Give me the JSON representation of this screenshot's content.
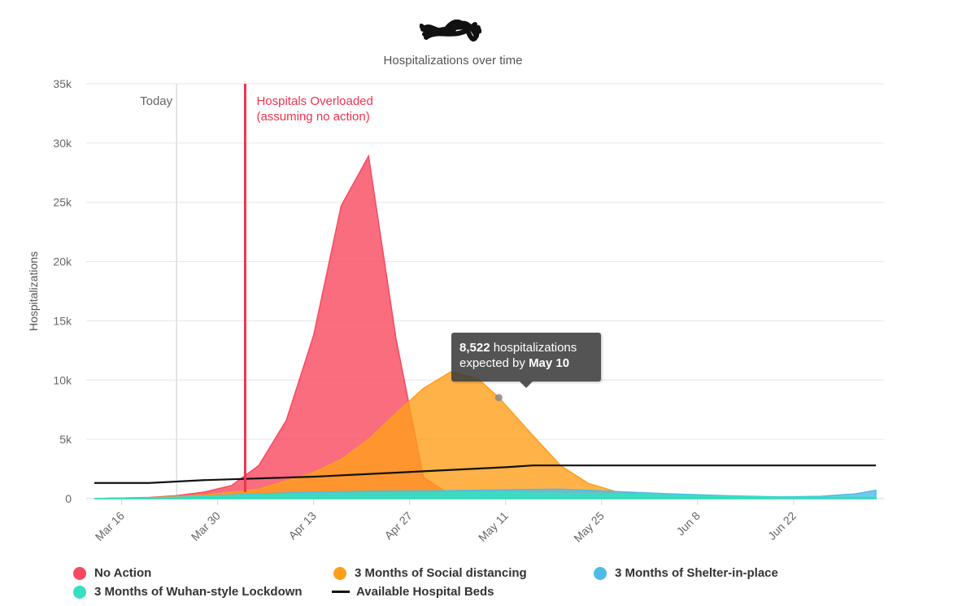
{
  "header": {
    "chart_title": "Hospitalizations over time"
  },
  "chart_data": {
    "type": "area",
    "title": "Hospitalizations over time",
    "ylabel": "Hospitalizations",
    "xlabel": "",
    "ylim": [
      0,
      35000
    ],
    "y_ticks": [
      {
        "value": 0,
        "label": "0"
      },
      {
        "value": 5000,
        "label": "5k"
      },
      {
        "value": 10000,
        "label": "10k"
      },
      {
        "value": 15000,
        "label": "15k"
      },
      {
        "value": 20000,
        "label": "20k"
      },
      {
        "value": 25000,
        "label": "25k"
      },
      {
        "value": 30000,
        "label": "30k"
      },
      {
        "value": 35000,
        "label": "35k"
      }
    ],
    "x_ticks": [
      {
        "date": "Mar 16",
        "label": "Mar 16"
      },
      {
        "date": "Mar 30",
        "label": "Mar 30"
      },
      {
        "date": "Apr 13",
        "label": "Apr 13"
      },
      {
        "date": "Apr 27",
        "label": "Apr 27"
      },
      {
        "date": "May 11",
        "label": "May 11"
      },
      {
        "date": "May 25",
        "label": "May 25"
      },
      {
        "date": "Jun 8",
        "label": "Jun 8"
      },
      {
        "date": "Jun 22",
        "label": "Jun 22"
      }
    ],
    "x_range": [
      "Mar 12",
      "Jul 4"
    ],
    "grid": true,
    "legend_position": "bottom",
    "annotations": {
      "today": {
        "date": "Mar 24",
        "label": "Today"
      },
      "overload": {
        "date": "Apr 3",
        "label_line1": "Hospitals Overloaded",
        "label_line2": "(assuming no action)",
        "color": "#f0334e"
      }
    },
    "tooltip": {
      "value": "8,522",
      "text_mid": " hospitalizations",
      "text_prefix": "expected by ",
      "date": "May 10",
      "point_date": "May 10",
      "point_value": 8522
    },
    "series": [
      {
        "name": "No Action",
        "color": "#f9485f",
        "points": [
          [
            "Mar 12",
            0
          ],
          [
            "Mar 16",
            50
          ],
          [
            "Mar 20",
            100
          ],
          [
            "Mar 24",
            250
          ],
          [
            "Mar 28",
            550
          ],
          [
            "Apr 1",
            1100
          ],
          [
            "Apr 5",
            2800
          ],
          [
            "Apr 9",
            6600
          ],
          [
            "Apr 13",
            13800
          ],
          [
            "Apr 17",
            24700
          ],
          [
            "Apr 21",
            28900
          ],
          [
            "Apr 25",
            13500
          ],
          [
            "Apr 29",
            1800
          ],
          [
            "May 3",
            300
          ],
          [
            "May 7",
            100
          ],
          [
            "May 11",
            30
          ],
          [
            "May 15",
            0
          ],
          [
            "Jul 4",
            0
          ]
        ]
      },
      {
        "name": "3 Months of Social distancing",
        "color": "#ff9f1a",
        "points": [
          [
            "Mar 12",
            0
          ],
          [
            "Mar 20",
            80
          ],
          [
            "Mar 28",
            300
          ],
          [
            "Apr 5",
            800
          ],
          [
            "Apr 13",
            2200
          ],
          [
            "Apr 17",
            3300
          ],
          [
            "Apr 21",
            5000
          ],
          [
            "Apr 25",
            7200
          ],
          [
            "Apr 29",
            9300
          ],
          [
            "May 3",
            10700
          ],
          [
            "May 7",
            10100
          ],
          [
            "May 10",
            8522
          ],
          [
            "May 15",
            5300
          ],
          [
            "May 19",
            2800
          ],
          [
            "May 23",
            1300
          ],
          [
            "May 27",
            600
          ],
          [
            "Jun 1",
            300
          ],
          [
            "Jun 10",
            120
          ],
          [
            "Jun 20",
            50
          ],
          [
            "Jul 4",
            20
          ]
        ]
      },
      {
        "name": "3 Months of Shelter-in-place",
        "color": "#4dbbe8",
        "points": [
          [
            "Mar 12",
            0
          ],
          [
            "Mar 24",
            120
          ],
          [
            "Apr 5",
            400
          ],
          [
            "Apr 13",
            550
          ],
          [
            "Apr 21",
            620
          ],
          [
            "May 1",
            650
          ],
          [
            "May 11",
            750
          ],
          [
            "May 19",
            800
          ],
          [
            "May 27",
            600
          ],
          [
            "Jun 4",
            400
          ],
          [
            "Jun 12",
            250
          ],
          [
            "Jun 20",
            150
          ],
          [
            "Jun 26",
            200
          ],
          [
            "Jul 1",
            400
          ],
          [
            "Jul 4",
            700
          ]
        ]
      },
      {
        "name": "3 Months of Wuhan-style Lockdown",
        "color": "#35e0bf",
        "points": [
          [
            "Mar 12",
            0
          ],
          [
            "Mar 24",
            100
          ],
          [
            "Apr 5",
            330
          ],
          [
            "Apr 13",
            430
          ],
          [
            "Apr 21",
            480
          ],
          [
            "May 1",
            500
          ],
          [
            "May 11",
            510
          ],
          [
            "May 19",
            450
          ],
          [
            "May 27",
            380
          ],
          [
            "Jun 4",
            300
          ],
          [
            "Jun 12",
            200
          ],
          [
            "Jun 20",
            120
          ],
          [
            "Jul 4",
            100
          ]
        ]
      },
      {
        "name": "Available Hospital Beds",
        "color": "#111111",
        "type": "line",
        "points": [
          [
            "Mar 12",
            1320
          ],
          [
            "Mar 20",
            1320
          ],
          [
            "Mar 28",
            1560
          ],
          [
            "Apr 13",
            1850
          ],
          [
            "Apr 27",
            2250
          ],
          [
            "May 11",
            2650
          ],
          [
            "May 15",
            2800
          ],
          [
            "Jul 4",
            2800
          ]
        ]
      }
    ]
  },
  "legend": {
    "items": [
      {
        "label": "No Action",
        "color": "#f9485f"
      },
      {
        "label": "3 Months of Social distancing",
        "color": "#ff9f1a"
      },
      {
        "label": "3 Months of Shelter-in-place",
        "color": "#4dbbe8"
      },
      {
        "label": "3 Months of Wuhan-style Lockdown",
        "color": "#35e0bf"
      },
      {
        "label": "Available Hospital Beds",
        "color": "#111111"
      }
    ]
  }
}
